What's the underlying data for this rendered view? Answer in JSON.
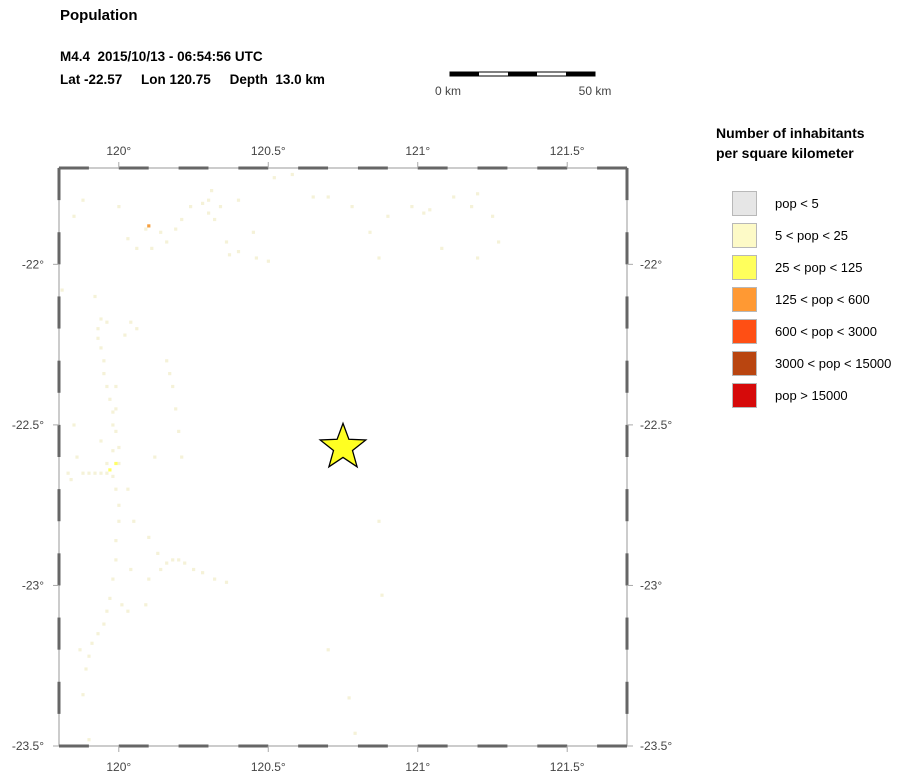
{
  "header": {
    "title": "Population",
    "event_line": "M4.4  2015/10/13 - 06:54:56 UTC",
    "location_line": "Lat -22.57     Lon 120.75     Depth  13.0 km"
  },
  "scale_bar": {
    "start_label": "0 km",
    "end_label": "50 km"
  },
  "map": {
    "lon_range": [
      119.8,
      121.7
    ],
    "lat_range": [
      -23.5,
      -21.7
    ],
    "lon_ticks": [
      {
        "value": 120.0,
        "label": "120°"
      },
      {
        "value": 120.5,
        "label": "120.5°"
      },
      {
        "value": 121.0,
        "label": "121°"
      },
      {
        "value": 121.5,
        "label": "121.5°"
      }
    ],
    "lat_ticks": [
      {
        "value": -22.0,
        "label": "-22°"
      },
      {
        "value": -22.5,
        "label": "-22.5°"
      },
      {
        "value": -23.0,
        "label": "-23°"
      },
      {
        "value": -23.5,
        "label": "-23.5°"
      }
    ],
    "epicenter": {
      "lon": 120.75,
      "lat": -22.57,
      "color": "#ffff22"
    },
    "frame_color": "#666666",
    "population_cells": {
      "colors": {
        "pop_5_25": "#f5f2d8",
        "pop_25_125": "#ffff66",
        "pop_125_600": "#f5a040"
      },
      "points": [
        [
          119.81,
          -22.08
        ],
        [
          119.83,
          -22.65
        ],
        [
          119.84,
          -22.67
        ],
        [
          119.85,
          -22.5
        ],
        [
          119.86,
          -22.6
        ],
        [
          119.87,
          -23.2
        ],
        [
          119.88,
          -23.34
        ],
        [
          119.9,
          -23.48
        ],
        [
          119.88,
          -22.65
        ],
        [
          119.9,
          -22.65
        ],
        [
          119.92,
          -22.65
        ],
        [
          119.94,
          -22.65
        ],
        [
          119.96,
          -22.65
        ],
        [
          119.98,
          -22.66
        ],
        [
          119.99,
          -22.7
        ],
        [
          119.93,
          -22.2
        ],
        [
          119.93,
          -22.23
        ],
        [
          119.94,
          -22.26
        ],
        [
          119.95,
          -22.3
        ],
        [
          119.95,
          -22.34
        ],
        [
          119.96,
          -22.38
        ],
        [
          119.97,
          -22.42
        ],
        [
          119.98,
          -22.46
        ],
        [
          119.99,
          -22.52
        ],
        [
          120.0,
          -22.57
        ],
        [
          120.0,
          -22.62
        ],
        [
          120.0,
          -22.75
        ],
        [
          120.0,
          -22.8
        ],
        [
          119.99,
          -22.86
        ],
        [
          119.99,
          -22.92
        ],
        [
          119.98,
          -22.98
        ],
        [
          119.97,
          -23.04
        ],
        [
          119.96,
          -23.08
        ],
        [
          119.95,
          -23.12
        ],
        [
          119.93,
          -23.15
        ],
        [
          119.91,
          -23.18
        ],
        [
          119.9,
          -23.22
        ],
        [
          119.89,
          -23.26
        ],
        [
          119.96,
          -22.18
        ],
        [
          119.94,
          -22.17
        ],
        [
          119.92,
          -22.1
        ],
        [
          119.99,
          -22.38
        ],
        [
          119.99,
          -22.45
        ],
        [
          119.98,
          -22.5
        ],
        [
          119.98,
          -22.58
        ],
        [
          120.03,
          -22.7
        ],
        [
          120.05,
          -22.8
        ],
        [
          120.04,
          -22.95
        ],
        [
          120.03,
          -23.08
        ],
        [
          120.02,
          -22.22
        ],
        [
          120.04,
          -22.18
        ],
        [
          120.06,
          -22.2
        ],
        [
          119.85,
          -21.85
        ],
        [
          119.88,
          -21.8
        ],
        [
          120.0,
          -21.82
        ],
        [
          120.03,
          -21.92
        ],
        [
          120.06,
          -21.95
        ],
        [
          120.09,
          -21.89
        ],
        [
          120.11,
          -21.95
        ],
        [
          120.14,
          -21.9
        ],
        [
          120.16,
          -21.93
        ],
        [
          120.19,
          -21.89
        ],
        [
          120.21,
          -21.86
        ],
        [
          120.24,
          -21.82
        ],
        [
          120.28,
          -21.81
        ],
        [
          120.3,
          -21.84
        ],
        [
          120.32,
          -21.86
        ],
        [
          120.36,
          -21.93
        ],
        [
          120.4,
          -21.96
        ],
        [
          120.37,
          -21.97
        ],
        [
          120.46,
          -21.98
        ],
        [
          120.5,
          -21.99
        ],
        [
          120.4,
          -21.8
        ],
        [
          120.31,
          -21.77
        ],
        [
          120.52,
          -21.73
        ],
        [
          120.58,
          -21.72
        ],
        [
          120.65,
          -21.79
        ],
        [
          120.7,
          -21.79
        ],
        [
          120.78,
          -21.82
        ],
        [
          120.84,
          -21.9
        ],
        [
          120.87,
          -21.98
        ],
        [
          120.9,
          -21.85
        ],
        [
          120.98,
          -21.82
        ],
        [
          121.02,
          -21.84
        ],
        [
          121.04,
          -21.83
        ],
        [
          121.08,
          -21.95
        ],
        [
          121.12,
          -21.79
        ],
        [
          121.18,
          -21.82
        ],
        [
          121.2,
          -21.98
        ],
        [
          121.27,
          -21.93
        ],
        [
          121.25,
          -21.85
        ],
        [
          121.2,
          -21.78
        ],
        [
          120.16,
          -22.3
        ],
        [
          120.17,
          -22.34
        ],
        [
          120.18,
          -22.38
        ],
        [
          120.19,
          -22.45
        ],
        [
          120.2,
          -22.52
        ],
        [
          120.21,
          -22.6
        ],
        [
          120.12,
          -22.6
        ],
        [
          120.13,
          -22.9
        ],
        [
          120.14,
          -22.95
        ],
        [
          120.16,
          -22.93
        ],
        [
          120.18,
          -22.92
        ],
        [
          120.2,
          -22.92
        ],
        [
          120.22,
          -22.93
        ],
        [
          120.25,
          -22.95
        ],
        [
          120.28,
          -22.96
        ],
        [
          120.32,
          -22.98
        ],
        [
          120.36,
          -22.99
        ],
        [
          120.1,
          -22.98
        ],
        [
          120.09,
          -23.06
        ],
        [
          120.01,
          -23.06
        ],
        [
          120.3,
          -21.8
        ],
        [
          120.34,
          -21.82
        ],
        [
          120.45,
          -21.9
        ],
        [
          120.87,
          -22.8
        ],
        [
          120.88,
          -23.03
        ],
        [
          120.7,
          -23.2
        ],
        [
          120.77,
          -23.35
        ],
        [
          120.79,
          -23.46
        ],
        [
          119.94,
          -22.55
        ],
        [
          119.96,
          -22.62
        ],
        [
          120.1,
          -22.85
        ]
      ],
      "yellow_points": [
        [
          119.99,
          -22.62
        ],
        [
          119.97,
          -22.64
        ]
      ],
      "orange_points": [
        [
          120.1,
          -21.88
        ]
      ]
    }
  },
  "legend": {
    "title_line1": "Number of inhabitants",
    "title_line2": "per square kilometer",
    "items": [
      {
        "label": "pop < 5",
        "color": "#e6e6e6"
      },
      {
        "label": "5 < pop < 25",
        "color": "#fdfac7"
      },
      {
        "label": "25 < pop < 125",
        "color": "#ffff5c"
      },
      {
        "label": "125 < pop < 600",
        "color": "#ff9933"
      },
      {
        "label": "600 < pop < 3000",
        "color": "#ff4f14"
      },
      {
        "label": "3000 < pop < 15000",
        "color": "#b94510"
      },
      {
        "label": "pop > 15000",
        "color": "#d60a0a"
      }
    ]
  }
}
